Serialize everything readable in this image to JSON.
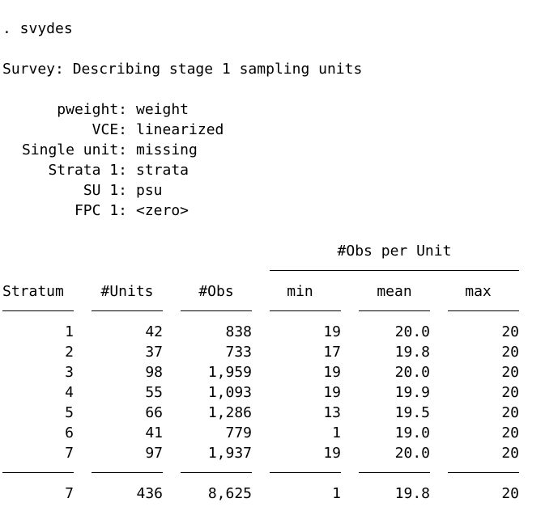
{
  "command": ". svydes",
  "title": "Survey: Describing stage 1 sampling units",
  "settings": [
    {
      "label": "pweight:",
      "value": "weight"
    },
    {
      "label": "VCE:",
      "value": "linearized"
    },
    {
      "label": "Single unit:",
      "value": "missing"
    },
    {
      "label": "Strata 1:",
      "value": "strata"
    },
    {
      "label": "SU 1:",
      "value": "psu"
    },
    {
      "label": "FPC 1:",
      "value": "<zero>"
    }
  ],
  "table": {
    "group_header": "#Obs per Unit",
    "headers": [
      "Stratum",
      "#Units",
      "#Obs",
      "min",
      "mean",
      "max"
    ],
    "rows": [
      [
        "1",
        "42",
        "838",
        "19",
        "20.0",
        "20"
      ],
      [
        "2",
        "37",
        "733",
        "17",
        "19.8",
        "20"
      ],
      [
        "3",
        "98",
        "1,959",
        "19",
        "20.0",
        "20"
      ],
      [
        "4",
        "55",
        "1,093",
        "19",
        "19.9",
        "20"
      ],
      [
        "5",
        "66",
        "1,286",
        "13",
        "19.5",
        "20"
      ],
      [
        "6",
        "41",
        "779",
        "1",
        "19.0",
        "20"
      ],
      [
        "7",
        "97",
        "1,937",
        "19",
        "20.0",
        "20"
      ]
    ],
    "total": [
      "7",
      "436",
      "8,625",
      "1",
      "19.8",
      "20"
    ]
  }
}
